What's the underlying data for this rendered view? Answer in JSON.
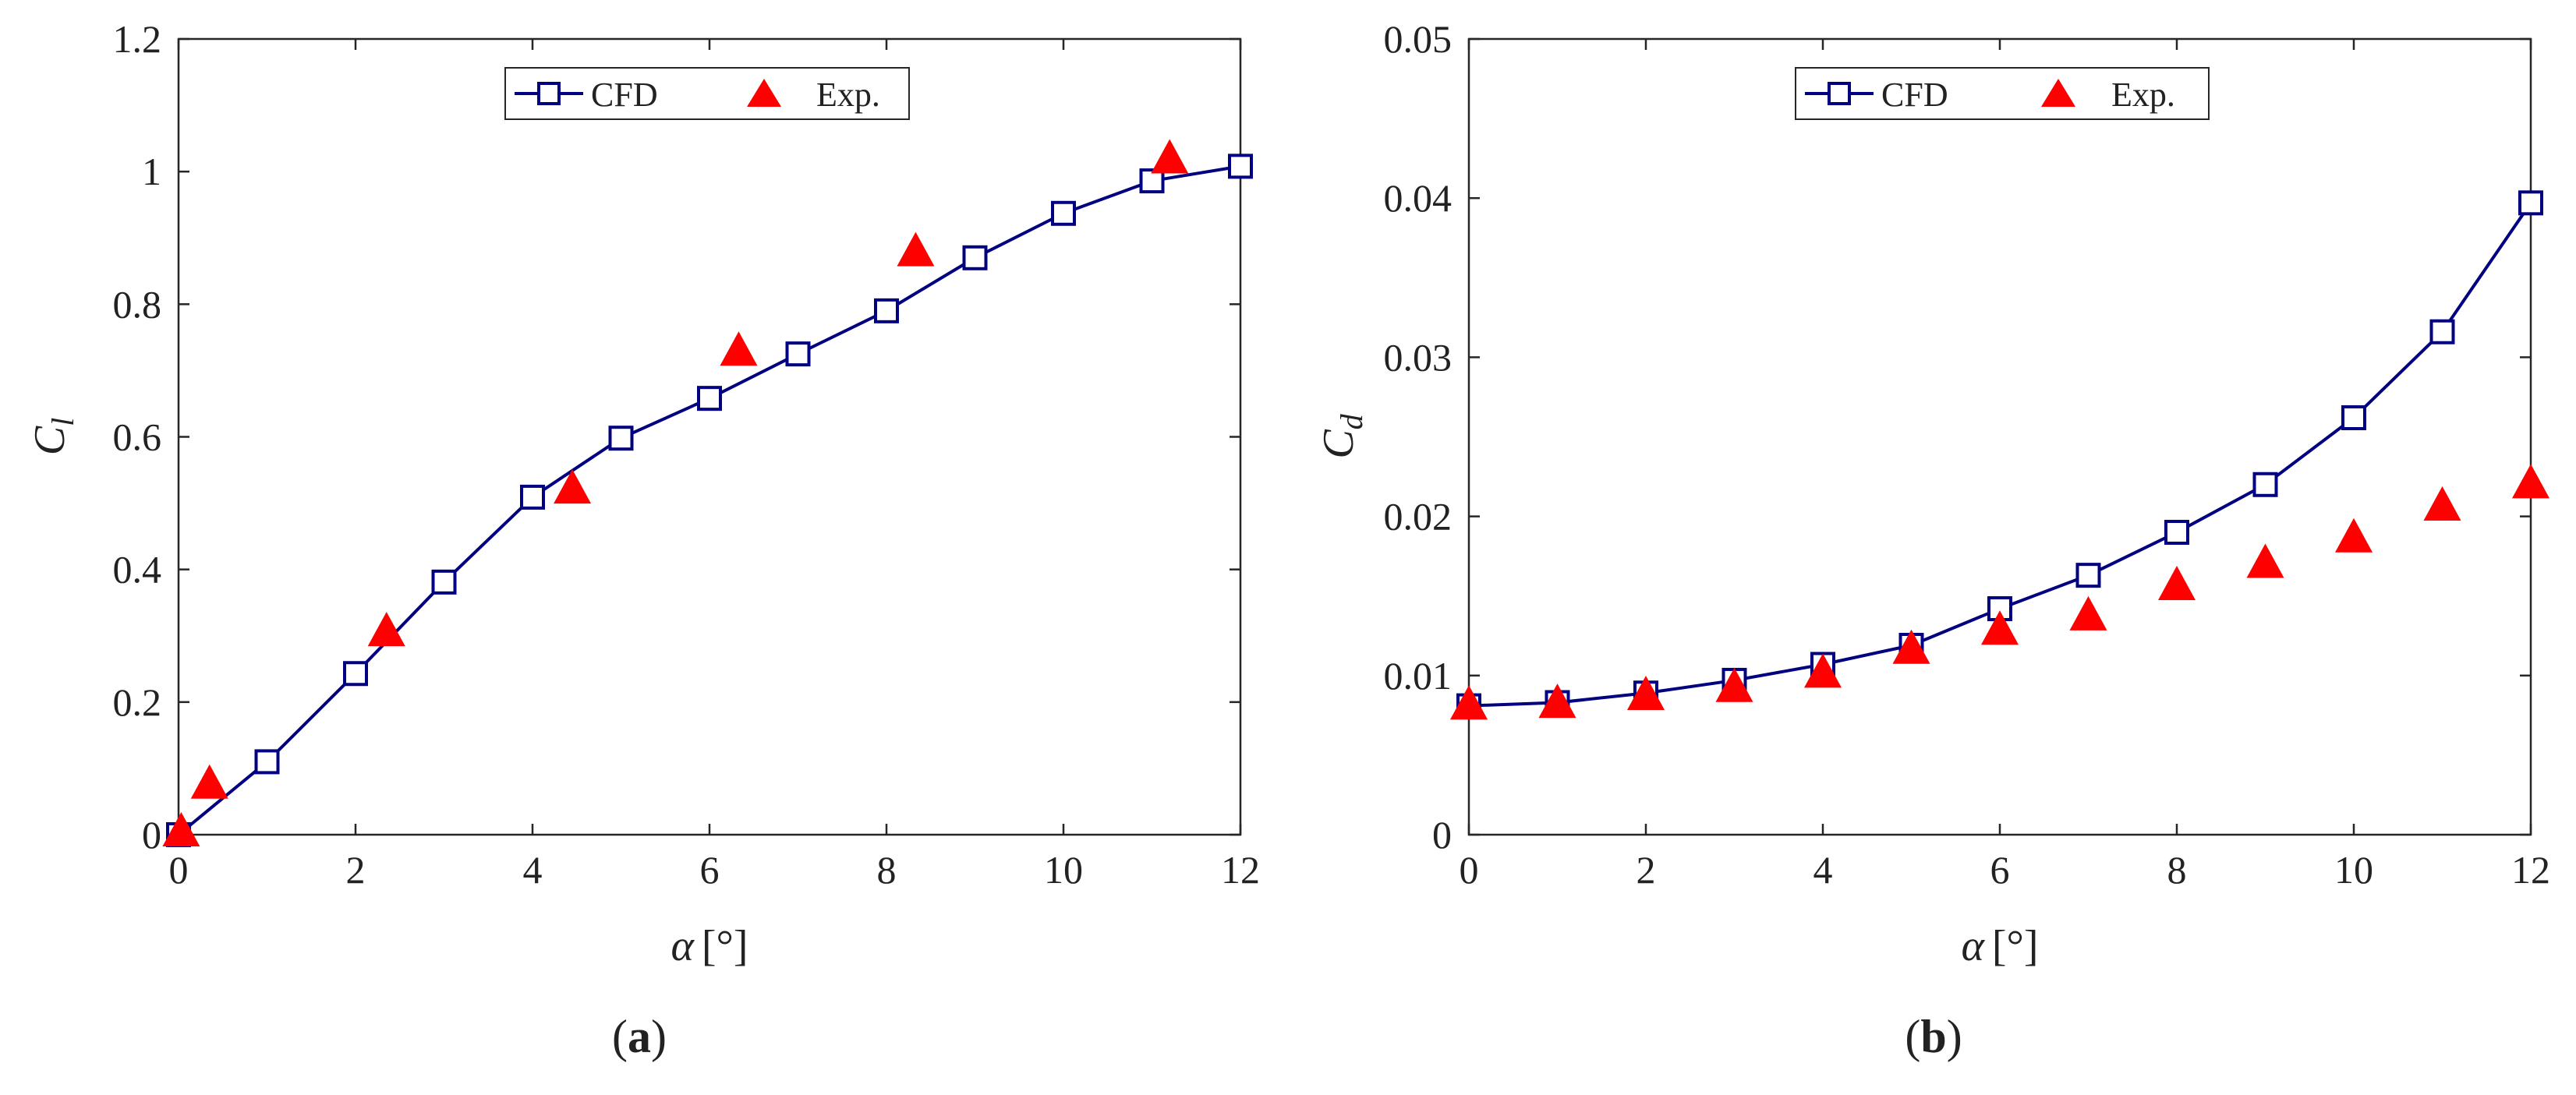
{
  "colors": {
    "cfd": "#000080",
    "exp": "#ff0000",
    "axis": "#262626"
  },
  "chart_data": [
    {
      "id": "a",
      "type": "line",
      "caption": "(a)",
      "caption_parts": {
        "open": "(",
        "letter": "a",
        "close": ")"
      },
      "xlabel": {
        "symbol": "α",
        "unit": "[°]"
      },
      "ylabel": {
        "symbol": "C",
        "subscript": "l"
      },
      "xlim": [
        0,
        12
      ],
      "ylim": [
        0,
        1.2
      ],
      "xticks": [
        0,
        2,
        4,
        6,
        8,
        10,
        12
      ],
      "yticks": [
        0,
        0.2,
        0.4,
        0.6,
        0.8,
        1,
        1.2
      ],
      "xtick_labels": [
        "0",
        "2",
        "4",
        "6",
        "8",
        "10",
        "12"
      ],
      "ytick_labels": [
        "0",
        "0.2",
        "0.4",
        "0.6",
        "0.8",
        "1",
        "1.2"
      ],
      "legend": {
        "position": "top-center",
        "entries": [
          "CFD",
          "Exp."
        ]
      },
      "series": [
        {
          "name": "CFD",
          "style": "line-square",
          "x": [
            0,
            1,
            2,
            3,
            4,
            5,
            6,
            7,
            8,
            9,
            10,
            11,
            12
          ],
          "y": [
            0.0,
            0.11,
            0.243,
            0.381,
            0.509,
            0.598,
            0.658,
            0.725,
            0.79,
            0.87,
            0.937,
            0.986,
            1.008
          ]
        },
        {
          "name": "Exp.",
          "style": "triangle",
          "x": [
            0.03,
            0.35,
            2.35,
            4.45,
            6.33,
            8.33,
            11.2
          ],
          "y": [
            0.003,
            0.075,
            0.305,
            0.52,
            0.728,
            0.878,
            1.018
          ]
        }
      ]
    },
    {
      "id": "b",
      "type": "line",
      "caption": "(b)",
      "caption_parts": {
        "open": "(",
        "letter": "b",
        "close": ")"
      },
      "xlabel": {
        "symbol": "α",
        "unit": "[°]"
      },
      "ylabel": {
        "symbol": "C",
        "subscript": "d"
      },
      "xlim": [
        0,
        12
      ],
      "ylim": [
        0,
        0.05
      ],
      "xticks": [
        0,
        2,
        4,
        6,
        8,
        10,
        12
      ],
      "yticks": [
        0,
        0.01,
        0.02,
        0.03,
        0.04,
        0.05
      ],
      "xtick_labels": [
        "0",
        "2",
        "4",
        "6",
        "8",
        "10",
        "12"
      ],
      "ytick_labels": [
        "0",
        "0.01",
        "0.02",
        "0.03",
        "0.04",
        "0.05"
      ],
      "legend": {
        "position": "top-center",
        "entries": [
          "CFD",
          "Exp."
        ]
      },
      "series": [
        {
          "name": "CFD",
          "style": "line-square",
          "x": [
            0,
            1,
            2,
            3,
            4,
            5,
            6,
            7,
            8,
            9,
            10,
            11,
            12
          ],
          "y": [
            0.0081,
            0.0083,
            0.0089,
            0.0097,
            0.0107,
            0.0119,
            0.0142,
            0.0163,
            0.019,
            0.022,
            0.0262,
            0.0316,
            0.0397
          ]
        },
        {
          "name": "Exp.",
          "style": "triangle",
          "x": [
            0,
            1,
            2,
            3,
            4,
            5,
            6,
            7,
            8,
            9,
            10,
            11,
            12
          ],
          "y": [
            0.0081,
            0.0082,
            0.0087,
            0.0092,
            0.0101,
            0.0116,
            0.0128,
            0.0137,
            0.0156,
            0.017,
            0.0186,
            0.0206,
            0.022
          ]
        }
      ]
    }
  ]
}
